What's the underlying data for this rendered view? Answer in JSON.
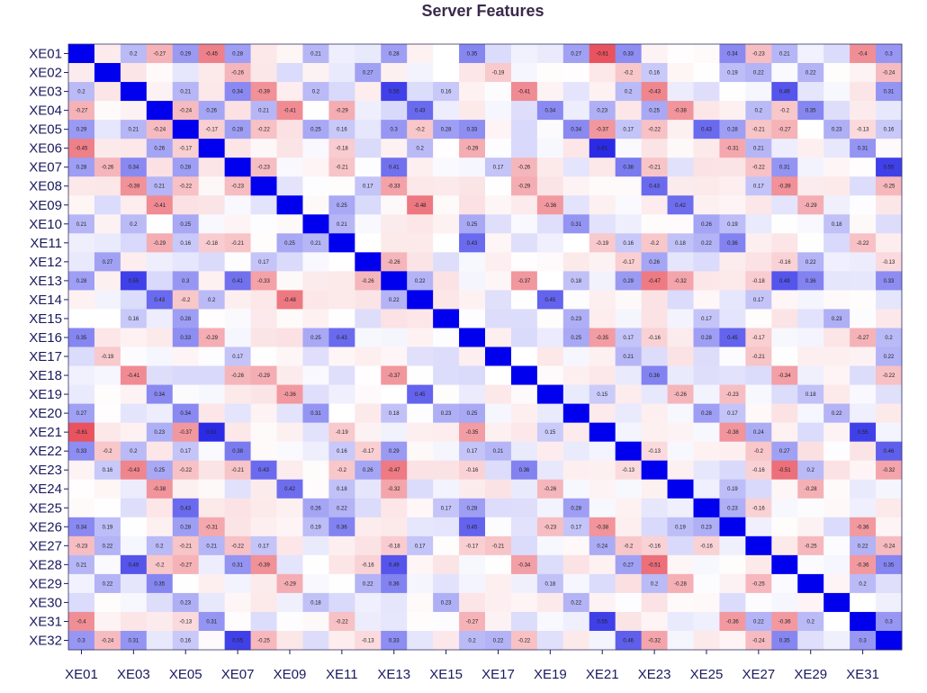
{
  "chart_data": {
    "type": "heatmap",
    "title": "Server Features",
    "row_labels": [
      "XE01",
      "XE02",
      "XE03",
      "XE04",
      "XE05",
      "XE06",
      "XE07",
      "XE08",
      "XE09",
      "XE10",
      "XE11",
      "XE12",
      "XE13",
      "XE14",
      "XE15",
      "XE16",
      "XE17",
      "XE18",
      "XE19",
      "XE20",
      "XE21",
      "XE22",
      "XE23",
      "XE24",
      "XE25",
      "XE26",
      "XE27",
      "XE28",
      "XE29",
      "XE30",
      "XE31",
      "XE32"
    ],
    "col_tick_labels": [
      "XE01",
      "XE03",
      "XE05",
      "XE07",
      "XE09",
      "XE11",
      "XE13",
      "XE15",
      "XE17",
      "XE19",
      "XE21",
      "XE23",
      "XE25",
      "XE27",
      "XE29",
      "XE31"
    ],
    "value_range": [
      -1,
      1
    ],
    "color_scale": {
      "negative": "#e8505a",
      "zero": "#ffffff",
      "positive": "#0000ee",
      "diagonal": "#0000ee"
    },
    "grid": false,
    "labeled_values": [
      [
        "XE01",
        "XE03",
        0.2
      ],
      [
        "XE01",
        "XE04",
        -0.27
      ],
      [
        "XE01",
        "XE05",
        0.29
      ],
      [
        "XE01",
        "XE06",
        -0.45
      ],
      [
        "XE01",
        "XE07",
        0.28
      ],
      [
        "XE01",
        "XE10",
        0.21
      ],
      [
        "XE01",
        "XE13",
        0.28
      ],
      [
        "XE01",
        "XE16",
        0.35
      ],
      [
        "XE01",
        "XE20",
        0.27
      ],
      [
        "XE01",
        "XE21",
        -0.61
      ],
      [
        "XE01",
        "XE22",
        0.33
      ],
      [
        "XE01",
        "XE26",
        0.34
      ],
      [
        "XE01",
        "XE27",
        -0.23
      ],
      [
        "XE01",
        "XE28",
        0.21
      ],
      [
        "XE01",
        "XE31",
        -0.4
      ],
      [
        "XE01",
        "XE32",
        0.3
      ],
      [
        "XE02",
        "XE07",
        -0.26
      ],
      [
        "XE02",
        "XE12",
        0.27
      ],
      [
        "XE02",
        "XE17",
        -0.19
      ],
      [
        "XE02",
        "XE22",
        -0.2
      ],
      [
        "XE02",
        "XE23",
        0.16
      ],
      [
        "XE02",
        "XE26",
        0.19
      ],
      [
        "XE02",
        "XE27",
        0.22
      ],
      [
        "XE02",
        "XE29",
        0.22
      ],
      [
        "XE02",
        "XE32",
        -0.24
      ],
      [
        "XE03",
        "XE05",
        0.21
      ],
      [
        "XE03",
        "XE07",
        0.34
      ],
      [
        "XE03",
        "XE08",
        -0.39
      ],
      [
        "XE03",
        "XE10",
        0.2
      ],
      [
        "XE03",
        "XE13",
        0.55
      ],
      [
        "XE03",
        "XE15",
        0.16
      ],
      [
        "XE03",
        "XE18",
        -0.41
      ],
      [
        "XE03",
        "XE22",
        0.2
      ],
      [
        "XE03",
        "XE23",
        -0.43
      ],
      [
        "XE03",
        "XE28",
        0.49
      ],
      [
        "XE03",
        "XE32",
        0.31
      ],
      [
        "XE04",
        "XE05",
        -0.24
      ],
      [
        "XE04",
        "XE06",
        0.26
      ],
      [
        "XE04",
        "XE08",
        0.21
      ],
      [
        "XE04",
        "XE09",
        -0.41
      ],
      [
        "XE04",
        "XE11",
        -0.29
      ],
      [
        "XE04",
        "XE14",
        0.43
      ],
      [
        "XE04",
        "XE19",
        0.34
      ],
      [
        "XE04",
        "XE21",
        0.23
      ],
      [
        "XE04",
        "XE23",
        0.25
      ],
      [
        "XE04",
        "XE24",
        -0.38
      ],
      [
        "XE04",
        "XE27",
        0.2
      ],
      [
        "XE04",
        "XE28",
        -0.2
      ],
      [
        "XE04",
        "XE29",
        0.35
      ],
      [
        "XE05",
        "XE06",
        -0.17
      ],
      [
        "XE05",
        "XE07",
        0.28
      ],
      [
        "XE05",
        "XE08",
        -0.22
      ],
      [
        "XE05",
        "XE10",
        0.25
      ],
      [
        "XE05",
        "XE11",
        0.16
      ],
      [
        "XE05",
        "XE13",
        0.3
      ],
      [
        "XE05",
        "XE14",
        -0.2
      ],
      [
        "XE05",
        "XE15",
        0.28
      ],
      [
        "XE05",
        "XE16",
        0.33
      ],
      [
        "XE05",
        "XE20",
        0.34
      ],
      [
        "XE05",
        "XE21",
        -0.37
      ],
      [
        "XE05",
        "XE22",
        0.17
      ],
      [
        "XE05",
        "XE23",
        -0.22
      ],
      [
        "XE05",
        "XE25",
        0.43
      ],
      [
        "XE05",
        "XE26",
        0.28
      ],
      [
        "XE05",
        "XE27",
        -0.21
      ],
      [
        "XE05",
        "XE28",
        -0.27
      ],
      [
        "XE05",
        "XE30",
        0.23
      ],
      [
        "XE05",
        "XE31",
        -0.13
      ],
      [
        "XE05",
        "XE32",
        0.16
      ],
      [
        "XE06",
        "XE11",
        -0.18
      ],
      [
        "XE06",
        "XE14",
        0.2
      ],
      [
        "XE06",
        "XE16",
        -0.29
      ],
      [
        "XE06",
        "XE21",
        0.61
      ],
      [
        "XE06",
        "XE26",
        -0.31
      ],
      [
        "XE06",
        "XE27",
        0.21
      ],
      [
        "XE06",
        "XE31",
        0.31
      ],
      [
        "XE07",
        "XE08",
        -0.23
      ],
      [
        "XE07",
        "XE11",
        -0.21
      ],
      [
        "XE07",
        "XE13",
        0.41
      ],
      [
        "XE07",
        "XE17",
        0.17
      ],
      [
        "XE07",
        "XE18",
        -0.26
      ],
      [
        "XE07",
        "XE22",
        0.38
      ],
      [
        "XE07",
        "XE23",
        -0.21
      ],
      [
        "XE07",
        "XE27",
        -0.22
      ],
      [
        "XE07",
        "XE28",
        0.31
      ],
      [
        "XE07",
        "XE32",
        0.55
      ],
      [
        "XE08",
        "XE12",
        0.17
      ],
      [
        "XE08",
        "XE13",
        -0.33
      ],
      [
        "XE08",
        "XE18",
        -0.29
      ],
      [
        "XE08",
        "XE23",
        0.43
      ],
      [
        "XE08",
        "XE27",
        0.17
      ],
      [
        "XE08",
        "XE28",
        -0.39
      ],
      [
        "XE08",
        "XE32",
        -0.25
      ],
      [
        "XE09",
        "XE11",
        0.25
      ],
      [
        "XE09",
        "XE14",
        -0.48
      ],
      [
        "XE09",
        "XE19",
        -0.36
      ],
      [
        "XE09",
        "XE24",
        0.42
      ],
      [
        "XE09",
        "XE29",
        -0.29
      ],
      [
        "XE10",
        "XE11",
        0.21
      ],
      [
        "XE10",
        "XE16",
        0.25
      ],
      [
        "XE10",
        "XE20",
        0.31
      ],
      [
        "XE10",
        "XE25",
        0.26
      ],
      [
        "XE10",
        "XE26",
        0.19
      ],
      [
        "XE10",
        "XE30",
        0.18
      ],
      [
        "XE11",
        "XE16",
        0.43
      ],
      [
        "XE11",
        "XE21",
        -0.19
      ],
      [
        "XE11",
        "XE22",
        0.16
      ],
      [
        "XE11",
        "XE23",
        -0.2
      ],
      [
        "XE11",
        "XE24",
        0.18
      ],
      [
        "XE11",
        "XE25",
        0.22
      ],
      [
        "XE11",
        "XE26",
        0.36
      ],
      [
        "XE11",
        "XE31",
        -0.22
      ],
      [
        "XE12",
        "XE13",
        -0.26
      ],
      [
        "XE12",
        "XE22",
        -0.17
      ],
      [
        "XE12",
        "XE23",
        0.26
      ],
      [
        "XE12",
        "XE28",
        -0.16
      ],
      [
        "XE12",
        "XE29",
        0.22
      ],
      [
        "XE12",
        "XE32",
        -0.13
      ],
      [
        "XE13",
        "XE14",
        0.22
      ],
      [
        "XE13",
        "XE18",
        -0.37
      ],
      [
        "XE13",
        "XE20",
        0.18
      ],
      [
        "XE13",
        "XE22",
        0.29
      ],
      [
        "XE13",
        "XE23",
        -0.47
      ],
      [
        "XE13",
        "XE24",
        -0.32
      ],
      [
        "XE13",
        "XE27",
        -0.18
      ],
      [
        "XE13",
        "XE28",
        0.49
      ],
      [
        "XE13",
        "XE29",
        0.36
      ],
      [
        "XE13",
        "XE32",
        0.33
      ],
      [
        "XE14",
        "XE19",
        0.45
      ],
      [
        "XE14",
        "XE27",
        0.17
      ],
      [
        "XE15",
        "XE20",
        0.23
      ],
      [
        "XE15",
        "XE25",
        0.17
      ],
      [
        "XE15",
        "XE30",
        0.23
      ],
      [
        "XE16",
        "XE20",
        0.25
      ],
      [
        "XE16",
        "XE21",
        -0.35
      ],
      [
        "XE16",
        "XE22",
        0.17
      ],
      [
        "XE16",
        "XE23",
        -0.16
      ],
      [
        "XE16",
        "XE25",
        0.28
      ],
      [
        "XE16",
        "XE26",
        0.45
      ],
      [
        "XE16",
        "XE27",
        -0.17
      ],
      [
        "XE16",
        "XE31",
        -0.27
      ],
      [
        "XE16",
        "XE32",
        0.2
      ],
      [
        "XE17",
        "XE22",
        0.21
      ],
      [
        "XE17",
        "XE27",
        -0.21
      ],
      [
        "XE17",
        "XE32",
        0.22
      ],
      [
        "XE18",
        "XE23",
        0.36
      ],
      [
        "XE18",
        "XE28",
        -0.34
      ],
      [
        "XE18",
        "XE32",
        -0.22
      ],
      [
        "XE19",
        "XE21",
        0.15
      ],
      [
        "XE19",
        "XE24",
        -0.26
      ],
      [
        "XE19",
        "XE26",
        -0.23
      ],
      [
        "XE19",
        "XE29",
        0.18
      ],
      [
        "XE20",
        "XE25",
        0.28
      ],
      [
        "XE20",
        "XE26",
        0.17
      ],
      [
        "XE20",
        "XE30",
        0.22
      ],
      [
        "XE21",
        "XE26",
        -0.38
      ],
      [
        "XE21",
        "XE27",
        0.24
      ],
      [
        "XE21",
        "XE31",
        0.55
      ],
      [
        "XE22",
        "XE23",
        -0.13
      ],
      [
        "XE22",
        "XE27",
        -0.2
      ],
      [
        "XE22",
        "XE28",
        0.27
      ],
      [
        "XE22",
        "XE32",
        0.46
      ],
      [
        "XE23",
        "XE27",
        -0.16
      ],
      [
        "XE23",
        "XE28",
        -0.51
      ],
      [
        "XE23",
        "XE29",
        0.2
      ],
      [
        "XE23",
        "XE32",
        -0.32
      ],
      [
        "XE24",
        "XE26",
        0.19
      ],
      [
        "XE24",
        "XE29",
        -0.28
      ],
      [
        "XE25",
        "XE26",
        0.23
      ],
      [
        "XE25",
        "XE27",
        -0.16
      ],
      [
        "XE26",
        "XE31",
        -0.36
      ],
      [
        "XE27",
        "XE29",
        -0.25
      ],
      [
        "XE27",
        "XE31",
        0.22
      ],
      [
        "XE27",
        "XE32",
        -0.24
      ],
      [
        "XE28",
        "XE31",
        -0.36
      ],
      [
        "XE28",
        "XE32",
        0.35
      ],
      [
        "XE29",
        "XE31",
        0.2
      ],
      [
        "XE31",
        "XE32",
        0.3
      ]
    ]
  }
}
